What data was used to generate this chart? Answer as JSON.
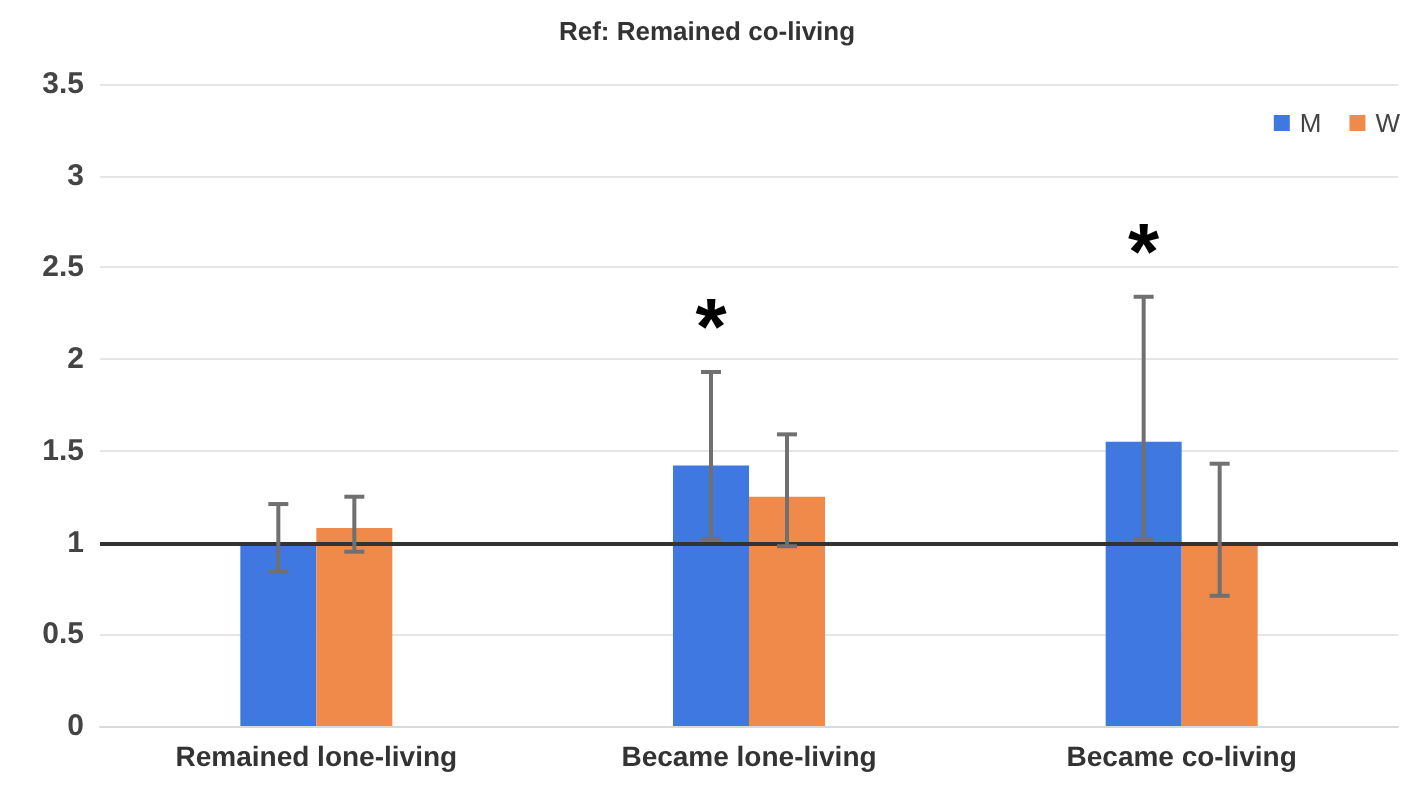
{
  "chart_data": {
    "type": "bar",
    "title": "Ref: Remained co-living",
    "categories": [
      "Remained lone-living",
      "Became lone-living",
      "Became co-living"
    ],
    "series": [
      {
        "name": "M",
        "color": "#3f78e0",
        "values": [
          1.0,
          1.42,
          1.55
        ],
        "errors": [
          [
            0.84,
            1.21
          ],
          [
            1.02,
            1.93
          ],
          [
            1.02,
            2.34
          ]
        ]
      },
      {
        "name": "W",
        "color": "#f08a4b",
        "values": [
          1.08,
          1.25,
          1.0
        ],
        "errors": [
          [
            0.95,
            1.25
          ],
          [
            0.98,
            1.59
          ],
          [
            0.71,
            1.43
          ]
        ]
      }
    ],
    "ylim": [
      0,
      3.5
    ],
    "yticks": [
      0,
      0.5,
      1,
      1.5,
      2,
      2.5,
      3,
      3.5
    ],
    "grid": "y",
    "legend": "top right",
    "ref_lines": [
      {
        "axis": "y",
        "value": 1,
        "color": "#333333"
      }
    ],
    "annotations": [
      "*",
      "*"
    ]
  }
}
